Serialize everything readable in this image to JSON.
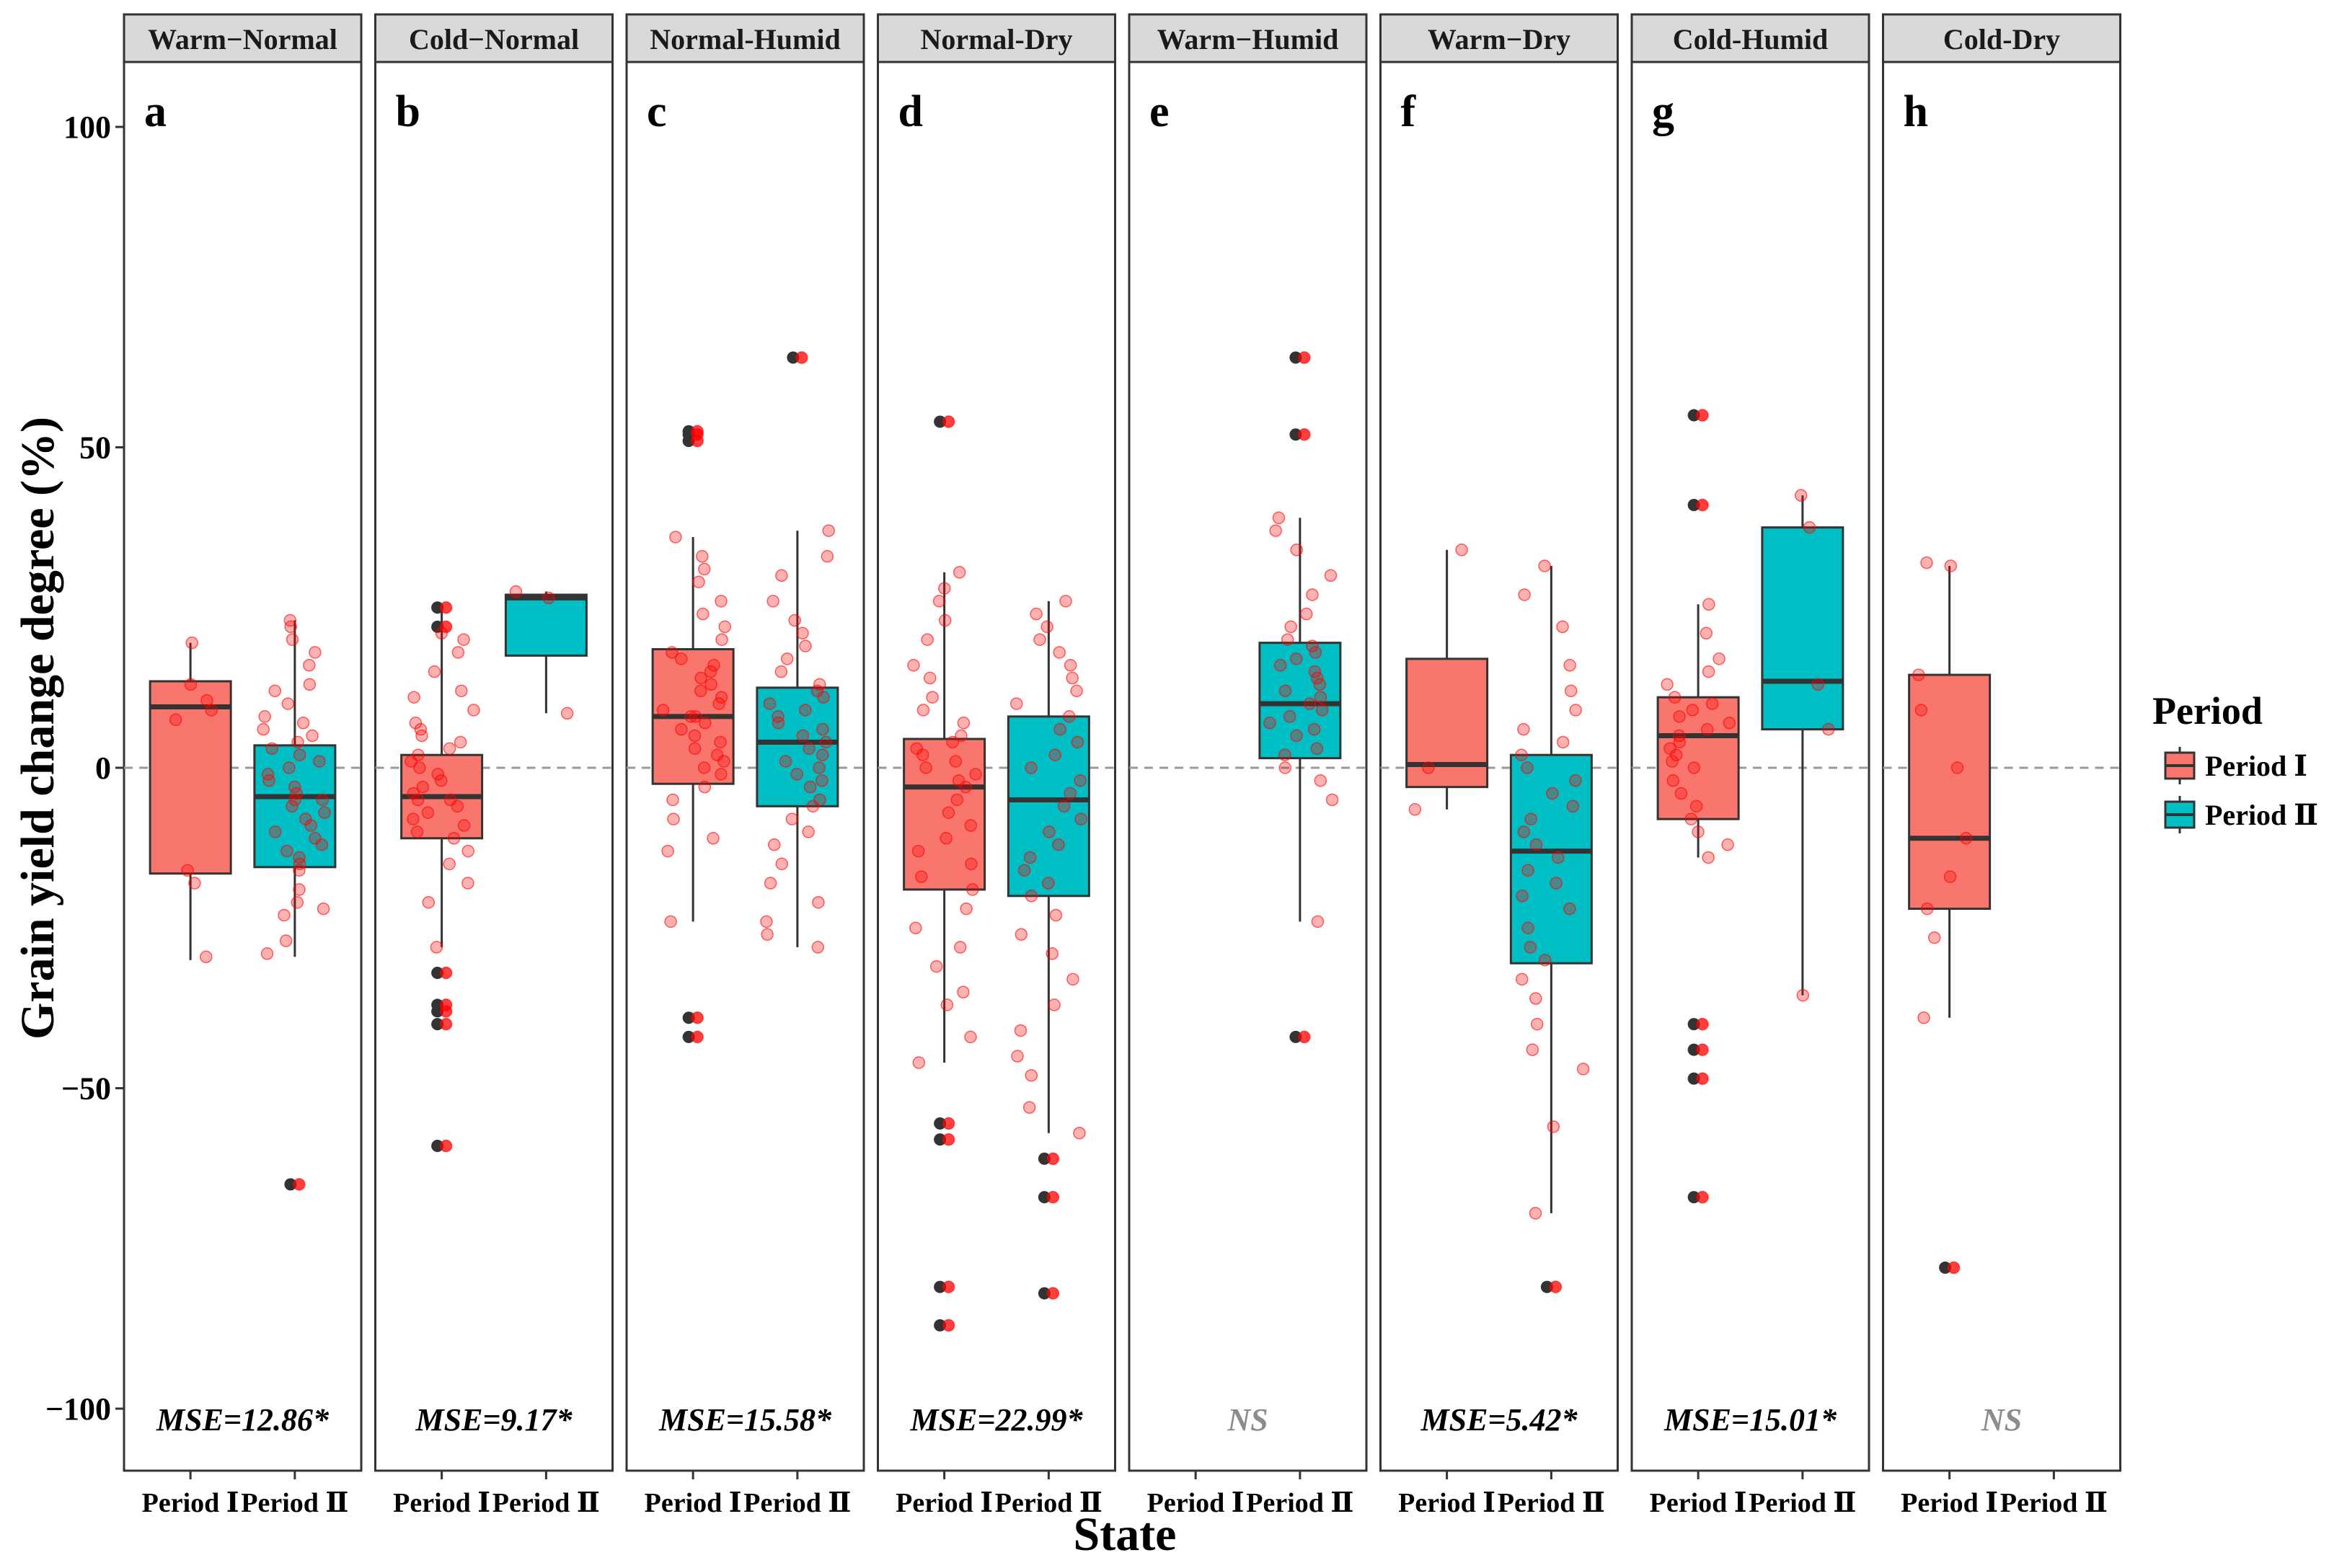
{
  "chart_data": {
    "type": "box",
    "y_axis_label": "Grain yield change degree (%)",
    "x_axis_label": "State",
    "ylim": [
      -110,
      112
    ],
    "yticks": [
      -100,
      -50,
      0,
      50,
      100
    ],
    "ytick_labels": [
      "−100",
      "−50",
      "0",
      "50",
      "100"
    ],
    "reference_line": 0,
    "categories": [
      "Period Ⅰ",
      "Period Ⅱ"
    ],
    "legend": {
      "title": "Period",
      "items": [
        {
          "label": "Period Ⅰ",
          "color": "#F8766D"
        },
        {
          "label": "Period Ⅱ",
          "color": "#00BFC4"
        }
      ]
    },
    "colors": {
      "period1": "#F8766D",
      "period2": "#00BFC4",
      "jitter": "#FF0000",
      "outlier": "#333333",
      "strip": "#D9D9D9",
      "ns": "#8C8C8C"
    },
    "panels": [
      {
        "state": "Warm−Normal",
        "letter": "a",
        "stat": "MSE=12.86*",
        "ns": false,
        "boxes": [
          {
            "period": "Period Ⅰ",
            "q1": -16.5,
            "median": 9.5,
            "q3": 13.5,
            "whisker_low": -30,
            "whisker_high": 19.5,
            "outliers": [],
            "points": [
              -29.5,
              -18,
              -16,
              7.5,
              9,
              10.5,
              13,
              19.5
            ]
          },
          {
            "period": "Period Ⅱ",
            "q1": -15.5,
            "median": -4.5,
            "q3": 3.5,
            "whisker_low": -29.5,
            "whisker_high": 23,
            "outliers": [
              -65
            ],
            "points": [
              -29,
              -27,
              -23,
              -22,
              -21,
              -19,
              -16,
              -15,
              -14,
              -13,
              -12,
              -11,
              -10,
              -9,
              -8,
              -7,
              -6,
              -5,
              -5,
              -4,
              -3,
              -2,
              -1,
              0,
              1,
              2,
              3,
              4,
              5,
              6,
              7,
              8,
              10,
              12,
              13,
              16,
              18,
              20,
              22,
              23,
              -65
            ]
          }
        ]
      },
      {
        "state": "Cold−Normal",
        "letter": "b",
        "stat": "MSE=9.17*",
        "ns": false,
        "boxes": [
          {
            "period": "Period Ⅰ",
            "q1": -11,
            "median": -4.5,
            "q3": 2,
            "whisker_low": -28,
            "whisker_high": 25,
            "outliers": [
              -32,
              -37,
              -38,
              -40,
              -59,
              22,
              25
            ],
            "points": [
              -28,
              -21,
              -18,
              -15,
              -13,
              -11,
              -10,
              -9,
              -8,
              -7,
              -6,
              -5,
              -5,
              -4,
              -3,
              -2,
              -1,
              0,
              1,
              2,
              3,
              4,
              5,
              6,
              7,
              9,
              11,
              12,
              15,
              18,
              20,
              21,
              -32,
              -37,
              -38,
              -40,
              -59,
              22,
              25
            ]
          },
          {
            "period": "Period Ⅱ",
            "q1": 17.5,
            "median": 26.5,
            "q3": 27,
            "whisker_low": 8.5,
            "whisker_high": 27.5,
            "outliers": [],
            "points": [
              8.5,
              26.5,
              27.5
            ]
          }
        ]
      },
      {
        "state": "Normal-Humid",
        "letter": "c",
        "stat": "MSE=15.58*",
        "ns": false,
        "boxes": [
          {
            "period": "Period Ⅰ",
            "q1": -2.5,
            "median": 8,
            "q3": 18.5,
            "whisker_low": -24,
            "whisker_high": 36,
            "outliers": [
              52,
              52.5,
              51,
              -39,
              -42
            ],
            "points": [
              -24,
              -13,
              -11,
              -8,
              -5,
              -3,
              -1,
              0,
              1,
              2,
              3,
              4,
              5,
              6,
              7,
              8,
              8,
              9,
              10,
              11,
              12,
              13,
              14,
              15,
              16,
              17,
              18,
              20,
              22,
              24,
              26,
              29,
              31,
              33,
              36,
              52,
              52.5,
              51,
              -39,
              -42
            ]
          },
          {
            "period": "Period Ⅱ",
            "q1": -6,
            "median": 4,
            "q3": 12.5,
            "whisker_low": -28,
            "whisker_high": 37,
            "outliers": [
              64
            ],
            "points": [
              -28,
              -26,
              -24,
              -21,
              -18,
              -15,
              -12,
              -10,
              -8,
              -6,
              -5,
              -3,
              -2,
              -1,
              0,
              1,
              2,
              3,
              4,
              5,
              6,
              7,
              8,
              9,
              10,
              11,
              12,
              13,
              15,
              17,
              19,
              21,
              23,
              26,
              30,
              33,
              37,
              64
            ]
          }
        ]
      },
      {
        "state": "Normal-Dry",
        "letter": "d",
        "stat": "MSE=22.99*",
        "ns": false,
        "boxes": [
          {
            "period": "Period Ⅰ",
            "q1": -19,
            "median": -3,
            "q3": 4.5,
            "whisker_low": -46,
            "whisker_high": 30.5,
            "outliers": [
              54,
              -55.5,
              -58,
              -81,
              -87
            ],
            "points": [
              -46,
              -42,
              -37,
              -35,
              -31,
              -28,
              -25,
              -22,
              -19,
              -17,
              -15,
              -13,
              -11,
              -9,
              -7,
              -5,
              -3,
              -2,
              -1,
              0,
              1,
              2,
              3,
              4,
              5,
              7,
              9,
              11,
              14,
              16,
              20,
              23,
              26,
              28,
              30.5,
              54,
              -55.5,
              -58,
              -81,
              -87
            ]
          },
          {
            "period": "Period Ⅱ",
            "q1": -20,
            "median": -5,
            "q3": 8,
            "whisker_low": -57,
            "whisker_high": 26,
            "outliers": [
              -61,
              -67,
              -82
            ],
            "points": [
              -57,
              -53,
              -48,
              -45,
              -41,
              -37,
              -33,
              -29,
              -26,
              -23,
              -20,
              -18,
              -16,
              -14,
              -12,
              -10,
              -8,
              -6,
              -4,
              -2,
              0,
              2,
              4,
              6,
              8,
              10,
              12,
              14,
              16,
              18,
              20,
              22,
              24,
              26,
              -61,
              -67,
              -82
            ]
          }
        ]
      },
      {
        "state": "Warm−Humid",
        "letter": "e",
        "stat": "NS",
        "ns": true,
        "boxes": [
          {
            "period": "Period Ⅰ",
            "q1": null,
            "median": null,
            "q3": null,
            "whisker_low": null,
            "whisker_high": null,
            "outliers": [],
            "points": []
          },
          {
            "period": "Period Ⅱ",
            "q1": 1.5,
            "median": 10,
            "q3": 19.5,
            "whisker_low": -24,
            "whisker_high": 39,
            "outliers": [
              64,
              52,
              -42
            ],
            "points": [
              -24,
              -5,
              -2,
              0,
              2,
              3,
              5,
              6,
              7,
              8,
              9,
              10,
              11,
              12,
              13,
              14,
              15,
              16,
              17,
              18,
              19,
              20,
              22,
              24,
              27,
              30,
              34,
              37,
              39,
              64,
              52,
              -42
            ]
          }
        ]
      },
      {
        "state": "Warm−Dry",
        "letter": "f",
        "stat": "MSE=5.42*",
        "ns": false,
        "boxes": [
          {
            "period": "Period Ⅰ",
            "q1": -3,
            "median": 0.5,
            "q3": 17,
            "whisker_low": -6.5,
            "whisker_high": 34,
            "outliers": [],
            "points": [
              -6.5,
              0,
              34
            ]
          },
          {
            "period": "Period Ⅱ",
            "q1": -30.5,
            "median": -13,
            "q3": 2,
            "whisker_low": -69.5,
            "whisker_high": 31.5,
            "outliers": [
              -81
            ],
            "points": [
              -69.5,
              -56,
              -47,
              -44,
              -40,
              -36,
              -33,
              -30,
              -28,
              -25,
              -22,
              -20,
              -18,
              -16,
              -14,
              -12,
              -10,
              -8,
              -6,
              -4,
              -2,
              0,
              2,
              4,
              6,
              9,
              12,
              16,
              22,
              27,
              31.5,
              -81
            ]
          }
        ]
      },
      {
        "state": "Cold-Humid",
        "letter": "g",
        "stat": "MSE=15.01*",
        "ns": false,
        "boxes": [
          {
            "period": "Period Ⅰ",
            "q1": -8,
            "median": 5,
            "q3": 11,
            "whisker_low": -14,
            "whisker_high": 25.5,
            "outliers": [
              55,
              41,
              -40,
              -44,
              -48.5,
              -67
            ],
            "points": [
              -14,
              -12,
              -10,
              -8,
              -6,
              -4,
              -2,
              0,
              1,
              2,
              3,
              4,
              5,
              6,
              7,
              8,
              9,
              10,
              11,
              13,
              15,
              17,
              21,
              25.5,
              55,
              41,
              -40,
              -44,
              -48.5,
              -67
            ]
          },
          {
            "period": "Period Ⅱ",
            "q1": 6,
            "median": 13.5,
            "q3": 37.5,
            "whisker_low": -35.5,
            "whisker_high": 42.5,
            "outliers": [],
            "points": [
              -35.5,
              6,
              13,
              37.5,
              42.5
            ]
          }
        ]
      },
      {
        "state": "Cold-Dry",
        "letter": "h",
        "stat": "NS",
        "ns": true,
        "boxes": [
          {
            "period": "Period Ⅰ",
            "q1": -22,
            "median": -11,
            "q3": 14.5,
            "whisker_low": -39,
            "whisker_high": 31.5,
            "outliers": [
              -78
            ],
            "points": [
              -39,
              -26.5,
              -22,
              -17,
              -11,
              0,
              9,
              14.5,
              31.5,
              32,
              -78
            ]
          },
          {
            "period": "Period Ⅱ",
            "q1": null,
            "median": null,
            "q3": null,
            "whisker_low": null,
            "whisker_high": null,
            "outliers": [],
            "points": []
          }
        ]
      }
    ]
  }
}
